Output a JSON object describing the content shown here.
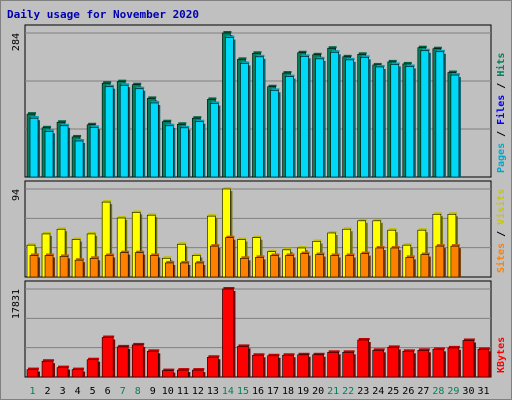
{
  "chart_data": [
    {
      "type": "bar",
      "title": "Daily usage for November 2020",
      "x": [
        1,
        2,
        3,
        4,
        5,
        6,
        7,
        8,
        9,
        10,
        11,
        12,
        13,
        14,
        15,
        16,
        17,
        18,
        19,
        20,
        21,
        22,
        23,
        24,
        25,
        26,
        27,
        28,
        29,
        30,
        31
      ],
      "weekend_days": [
        1,
        7,
        8,
        14,
        15,
        21,
        22,
        28,
        29
      ],
      "ymax_label": "284",
      "ymax": 284,
      "series": [
        {
          "name": "Hits",
          "color": "#00805c",
          "values": [
            124,
            97,
            108,
            79,
            103,
            185,
            188,
            182,
            155,
            109,
            104,
            116,
            153,
            284,
            232,
            244,
            178,
            205,
            245,
            241,
            254,
            237,
            242,
            221,
            227,
            223,
            255,
            253,
            206,
            0,
            0
          ]
        },
        {
          "name": "Files",
          "color": "#00d8f8",
          "values": [
            116,
            90,
            101,
            71,
            98,
            178,
            181,
            174,
            146,
            101,
            97,
            109,
            145,
            275,
            224,
            237,
            171,
            198,
            238,
            233,
            246,
            231,
            236,
            217,
            222,
            218,
            249,
            247,
            201,
            0,
            0
          ]
        },
        {
          "name": "Pages",
          "color": "#0000ff",
          "values": [
            0,
            0,
            0,
            0,
            0,
            0,
            0,
            0,
            0,
            0,
            0,
            0,
            0,
            0,
            0,
            0,
            0,
            0,
            0,
            0,
            0,
            0,
            0,
            0,
            0,
            0,
            0,
            0,
            0,
            0,
            0
          ]
        }
      ],
      "right_labels": [
        {
          "text": "Pages",
          "color": "#00a8c8"
        },
        {
          "text": " / ",
          "color": "#000000"
        },
        {
          "text": "Files",
          "color": "#0000ff"
        },
        {
          "text": " / ",
          "color": "#000000"
        },
        {
          "text": "Hits",
          "color": "#00805c"
        }
      ]
    },
    {
      "type": "bar",
      "ymax_label": "94",
      "ymax": 94,
      "series": [
        {
          "name": "Visits",
          "color": "#ffff00",
          "values": [
            34,
            46,
            51,
            40,
            46,
            80,
            63,
            69,
            66,
            20,
            35,
            23,
            65,
            94,
            40,
            42,
            27,
            29,
            31,
            38,
            47,
            51,
            60,
            60,
            50,
            34,
            50,
            67,
            67,
            0,
            0
          ]
        },
        {
          "name": "Sites",
          "color": "#ff8000",
          "values": [
            23,
            23,
            22,
            18,
            20,
            23,
            26,
            26,
            23,
            15,
            15,
            15,
            33,
            42,
            20,
            21,
            23,
            23,
            25,
            24,
            23,
            23,
            25,
            31,
            31,
            21,
            24,
            33,
            33,
            0,
            0
          ]
        }
      ],
      "right_labels": [
        {
          "text": "Sites",
          "color": "#ff8000"
        },
        {
          "text": " / ",
          "color": "#000000"
        },
        {
          "text": "Visits",
          "color": "#c8c800"
        }
      ]
    },
    {
      "type": "bar",
      "ymax_label": "17831",
      "ymax": 17831,
      "series": [
        {
          "name": "KBytes",
          "color": "#ff0000",
          "values": [
            1500,
            3200,
            1900,
            1500,
            3500,
            8000,
            6100,
            6500,
            5200,
            1300,
            1400,
            1400,
            4000,
            17831,
            6200,
            4400,
            4300,
            4400,
            4500,
            4500,
            5000,
            5000,
            7500,
            5400,
            6000,
            5200,
            5400,
            5600,
            5900,
            7400,
            5600
          ]
        }
      ],
      "right_labels": [
        {
          "text": "KBytes",
          "color": "#ff0000"
        }
      ]
    }
  ]
}
